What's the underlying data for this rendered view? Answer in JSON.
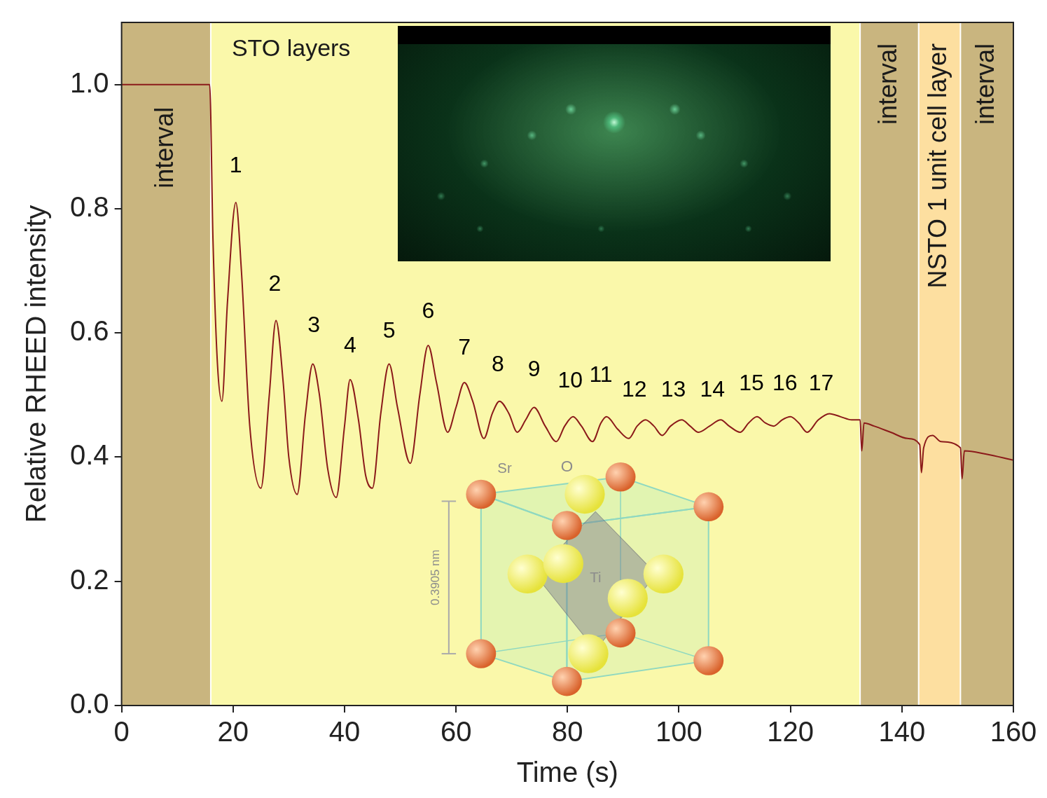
{
  "chart_data": {
    "type": "line",
    "x_label": "Time (s)",
    "y_label": "Relative RHEED intensity",
    "xlim": [
      0,
      160
    ],
    "xticks": [
      0,
      20,
      40,
      60,
      80,
      100,
      120,
      140,
      160
    ],
    "ylim": [
      0,
      1.1
    ],
    "yticks": [
      {
        "value": 0,
        "label": "0.0"
      },
      0.2,
      0.4,
      0.6,
      0.8,
      {
        "value": 1,
        "label": "1.0"
      }
    ],
    "grid": false,
    "color": "#8b1a1a",
    "x": [
      0,
      15.8,
      16.4,
      17.2,
      18,
      19,
      20.5,
      21.5,
      23,
      25,
      26.5,
      27.7,
      29,
      30,
      31.5,
      33,
      34.3,
      35.5,
      37,
      38.5,
      40,
      41,
      42.5,
      43.8,
      45,
      46.5,
      48,
      49.5,
      51.8,
      53.5,
      55,
      56.5,
      58.5,
      60,
      61.5,
      63,
      65,
      66.5,
      67.8,
      69.5,
      71,
      72.5,
      74,
      76,
      78,
      79.5,
      81,
      82.5,
      84.5,
      86,
      87,
      89,
      91,
      92.5,
      94,
      95.5,
      97,
      98.5,
      100.5,
      102,
      103.5,
      105.5,
      107.5,
      109,
      111,
      112.5,
      114,
      115.5,
      117,
      118.5,
      120,
      121.5,
      123,
      125,
      127,
      129,
      131,
      132.5,
      132.8,
      133.2,
      135,
      138,
      141,
      143.2,
      143.5,
      143.9,
      145.5,
      147,
      150.5,
      150.8,
      151.2,
      155,
      160
    ],
    "values": [
      1.0,
      1.0,
      0.75,
      0.55,
      0.49,
      0.65,
      0.81,
      0.7,
      0.45,
      0.35,
      0.5,
      0.62,
      0.52,
      0.4,
      0.34,
      0.47,
      0.55,
      0.5,
      0.38,
      0.335,
      0.45,
      0.525,
      0.46,
      0.37,
      0.35,
      0.47,
      0.55,
      0.48,
      0.39,
      0.5,
      0.58,
      0.52,
      0.44,
      0.48,
      0.52,
      0.49,
      0.43,
      0.47,
      0.49,
      0.47,
      0.44,
      0.46,
      0.48,
      0.45,
      0.425,
      0.45,
      0.465,
      0.45,
      0.425,
      0.455,
      0.465,
      0.445,
      0.43,
      0.45,
      0.46,
      0.45,
      0.435,
      0.45,
      0.46,
      0.45,
      0.44,
      0.45,
      0.46,
      0.45,
      0.44,
      0.455,
      0.465,
      0.455,
      0.45,
      0.46,
      0.465,
      0.455,
      0.44,
      0.46,
      0.47,
      0.465,
      0.46,
      0.46,
      0.41,
      0.455,
      0.45,
      0.44,
      0.43,
      0.42,
      0.375,
      0.415,
      0.435,
      0.425,
      0.415,
      0.365,
      0.41,
      0.405,
      0.395
    ],
    "regions": [
      {
        "label": "interval",
        "start": 0,
        "end": 16,
        "color": "#c9b57f"
      },
      {
        "label": "STO layers",
        "start": 16,
        "end": 132.5,
        "color": "#faf8aa"
      },
      {
        "label": "interval",
        "start": 132.5,
        "end": 143,
        "color": "#c9b57f"
      },
      {
        "label": "NSTO 1 unit cell layer",
        "start": 143,
        "end": 150.5,
        "color": "#fddfa0"
      },
      {
        "label": "interval",
        "start": 150.5,
        "end": 160,
        "color": "#c9b57f"
      }
    ],
    "annotations": [
      {
        "text": "1",
        "x": 20.5,
        "y": 0.85
      },
      {
        "text": "2",
        "x": 27.5,
        "y": 0.66
      },
      {
        "text": "3",
        "x": 34.5,
        "y": 0.593
      },
      {
        "text": "4",
        "x": 41,
        "y": 0.56
      },
      {
        "text": "5",
        "x": 48,
        "y": 0.584
      },
      {
        "text": "6",
        "x": 55,
        "y": 0.616
      },
      {
        "text": "7",
        "x": 61.5,
        "y": 0.557
      },
      {
        "text": "8",
        "x": 67.5,
        "y": 0.53
      },
      {
        "text": "9",
        "x": 74,
        "y": 0.522
      },
      {
        "text": "10",
        "x": 80.5,
        "y": 0.504
      },
      {
        "text": "11",
        "x": 86,
        "y": 0.513
      },
      {
        "text": "12",
        "x": 92,
        "y": 0.49
      },
      {
        "text": "13",
        "x": 99,
        "y": 0.49
      },
      {
        "text": "14",
        "x": 106,
        "y": 0.49
      },
      {
        "text": "15",
        "x": 113,
        "y": 0.5
      },
      {
        "text": "16",
        "x": 119,
        "y": 0.5
      },
      {
        "text": "17",
        "x": 125.5,
        "y": 0.5
      }
    ],
    "crystal_inset": {
      "corner_atom": "Sr",
      "face_atom": "O",
      "center_atom": "Ti",
      "lattice_constant": "0.3905 nm"
    }
  }
}
